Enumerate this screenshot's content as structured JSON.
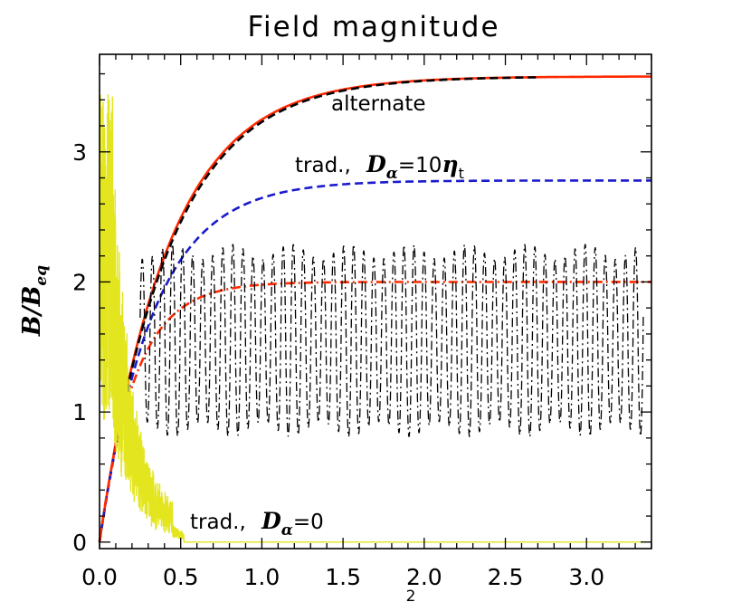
{
  "chart_data": {
    "type": "line",
    "title": "Field magnitude",
    "ylabel": {
      "main": "B/B",
      "sub": "eq"
    },
    "xlabel_fragment": "2",
    "xlim": [
      0.0,
      3.4
    ],
    "ylim": [
      -0.05,
      3.75
    ],
    "x_ticks": [
      0.0,
      0.5,
      1.0,
      1.5,
      2.0,
      2.5,
      3.0
    ],
    "x_tick_labels": [
      "0.0",
      "0.5",
      "1.0",
      "1.5",
      "2.0",
      "2.5",
      "3.0"
    ],
    "y_ticks": [
      0,
      1,
      2,
      3
    ],
    "y_tick_labels": [
      "0",
      "1",
      "2",
      "3"
    ],
    "annotations": {
      "alternate": "alternate",
      "trad_10": {
        "prefix": "trad.,",
        "symbol": "D",
        "sub": "α",
        "eq": "=10",
        "sym2": "η",
        "sub2": "t"
      },
      "trad_0": {
        "prefix": "trad.,",
        "symbol": "D",
        "sub": "α",
        "eq": "=0"
      }
    },
    "series": [
      {
        "key": "alternate_red",
        "color": "#ff2a00",
        "style": "solid",
        "kind": "saturating",
        "y0": 0.0,
        "yinf": 3.58,
        "tau": 0.42,
        "xmax": 3.4
      },
      {
        "key": "alternate_black",
        "color": "#000000",
        "style": "dashed",
        "kind": "saturating",
        "y0": 0.0,
        "yinf": 3.58,
        "tau": 0.43,
        "xmax": 2.7
      },
      {
        "key": "trad_10_blue",
        "color": "#1a1acc",
        "style": "dashed",
        "kind": "saturating",
        "y0": 0.0,
        "yinf": 2.78,
        "tau": 0.33,
        "xmax": 3.4
      },
      {
        "key": "trad_10_red",
        "color": "#ff2a00",
        "style": "dashdot",
        "kind": "saturating",
        "y0": 0.0,
        "yinf": 2.0,
        "tau": 0.22,
        "xmax": 3.4
      },
      {
        "key": "oscillating_black",
        "color": "#000000",
        "style": "dashdot",
        "kind": "oscillating",
        "center": 1.55,
        "amp": 0.72,
        "period": 0.062,
        "xstart": 0.25,
        "xmax": 3.35
      },
      {
        "key": "trad_0_yellow",
        "color": "#e3e61e",
        "style": "noisy",
        "kind": "decaying",
        "xmax": 0.52
      }
    ]
  }
}
